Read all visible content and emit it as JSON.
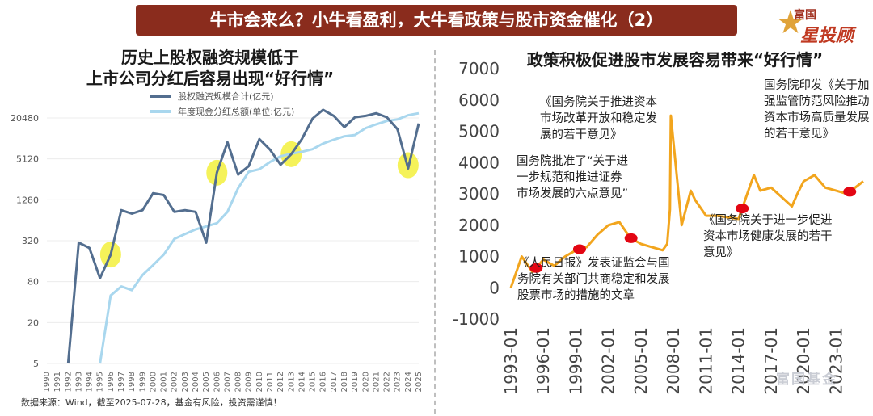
{
  "banner": {
    "title": "牛市会来么？小牛看盈利，大牛看政策与股市资金催化（2）"
  },
  "logo": {
    "line1": "富国",
    "line2": "星投顾",
    "icon": "star-icon"
  },
  "watermark": {
    "text": "富国基金"
  },
  "left_title": {
    "line1": "历史上股权融资规模低于",
    "line2": "上市公司分红后容易出现“好行情”"
  },
  "right_title": "政策积极促进股市发展容易带来“好行情”",
  "source": "数据来源：Wind，截至2025-07-28，基金有风险，投资需谨慎！",
  "colors": {
    "banner": "#8a2c1d",
    "equity": "#536e8f",
    "dividend": "#a9d7ee",
    "index": "#f2a51d",
    "highlight": "#f3f03c",
    "marker": "#e30613"
  },
  "annotations": [
    "《人民日报》发表证监会与国 务院有关部门共商稳定和发展 股票市场的措施的文章",
    "国务院批准了“关于进一步规范和推进证券市场发展的六点意见”",
    "《国务院关于推进资本市场改革开放和稳定发展的若干意见》",
    "《国务院关于进一步促进资本市场健康发展的若干意见》",
    "国务院印发《关于加强监管防范风险推动资本市场高质量发展的若干意见》"
  ],
  "chart_data": [
    {
      "type": "line",
      "title": "历史上股权融资规模低于上市公司分红后容易出现“好行情”",
      "x": [
        1990,
        1991,
        1992,
        1993,
        1994,
        1995,
        1996,
        1997,
        1998,
        1999,
        2000,
        2001,
        2002,
        2003,
        2004,
        2005,
        2006,
        2007,
        2008,
        2009,
        2010,
        2011,
        2012,
        2013,
        2014,
        2015,
        2016,
        2017,
        2018,
        2019,
        2020,
        2021,
        2022,
        2023,
        2024,
        2025
      ],
      "ylim": [
        5,
        20480
      ],
      "yscale": "log2",
      "yticks": [
        5,
        20,
        80,
        320,
        1280,
        5120,
        20480
      ],
      "series": [
        {
          "name": "股权融资规模合计(亿元)",
          "values": [
            null,
            null,
            5,
            300,
            250,
            90,
            200,
            900,
            800,
            900,
            1600,
            1500,
            850,
            900,
            850,
            300,
            3200,
            9000,
            3000,
            4000,
            10000,
            7000,
            4200,
            6000,
            10000,
            20000,
            27000,
            22000,
            15000,
            21000,
            22000,
            24000,
            21000,
            14000,
            3700,
            17000
          ]
        },
        {
          "name": "年度现金分红总额(单位:亿元)",
          "values": [
            null,
            null,
            null,
            null,
            null,
            5,
            50,
            68,
            60,
            100,
            140,
            200,
            340,
            400,
            470,
            520,
            580,
            850,
            1900,
            3300,
            3600,
            4600,
            5600,
            6100,
            6500,
            7100,
            8600,
            9800,
            11000,
            11500,
            14500,
            16500,
            18500,
            19500,
            22500,
            24000
          ]
        }
      ],
      "highlights": [
        1996,
        2006,
        2013,
        2024
      ]
    },
    {
      "type": "line",
      "series": [
        {
          "values": [
            1,
            1000,
            500,
            900,
            700,
            1000,
            1200,
            1300,
            1700,
            2000,
            2100,
            1600,
            1400,
            1300,
            1200,
            1400,
            2500,
            5500,
            2000,
            3100,
            2800,
            2300,
            2300,
            2200,
            3200,
            3600,
            3100,
            3200,
            2600,
            3000,
            3400,
            3600,
            3200,
            3100,
            3000,
            3400
          ]
        }
      ],
      "x": [
        "1993-01",
        "1994-01",
        "1995-01",
        "1996-01",
        "1997-01",
        "1998-01",
        "1999-01",
        "2000-01",
        "2001-01",
        "2002-01",
        "2003-01",
        "2004-01",
        "2005-01",
        "2006-01",
        "2007-01",
        "2007-06",
        "2007-09",
        "2007-10",
        "2008-10",
        "2009-08",
        "2010-01",
        "2011-01",
        "2012-01",
        "2014-01",
        "2015-01",
        "2015-06",
        "2016-01",
        "2017-01",
        "2018-12",
        "2019-06",
        "2020-01",
        "2021-01",
        "2022-01",
        "2023-01",
        "2024-01",
        "2025-07"
      ],
      "ylim": [
        -1000,
        7000
      ],
      "yticks": [
        -1000,
        0,
        1000,
        2000,
        3000,
        4000,
        5000,
        6000,
        7000
      ],
      "xticks": [
        "1993-01",
        "1996-01",
        "1999-01",
        "2002-01",
        "2005-01",
        "2008-01",
        "2011-01",
        "2014-01",
        "2017-01",
        "2020-01",
        "2023-01"
      ],
      "markers": [
        "1995-05",
        "1999-05",
        "2004-02",
        "2014-05",
        "2024-04"
      ]
    }
  ]
}
